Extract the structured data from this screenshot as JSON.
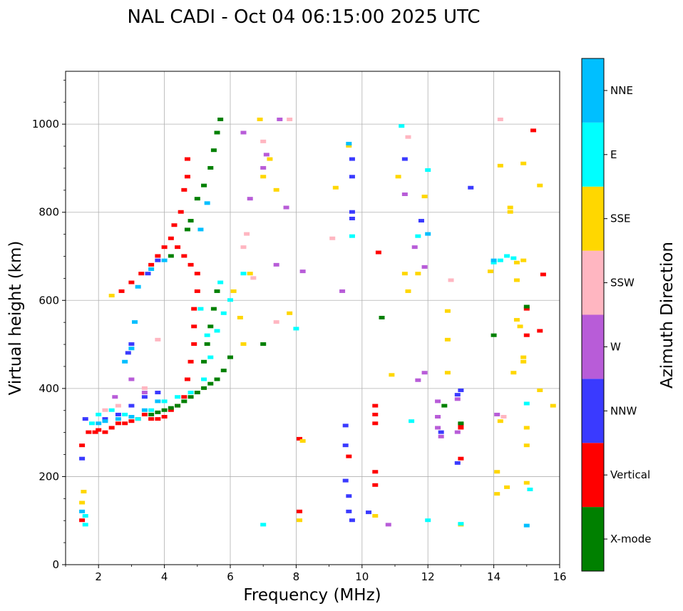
{
  "chart_data": {
    "type": "scatter",
    "title": "NAL CADI - Oct 04 06:15:00 2025 UTC",
    "xlabel": "Frequency (MHz)",
    "ylabel": "Virtual height (km)",
    "xlim": [
      1,
      16
    ],
    "ylim": [
      0,
      1120
    ],
    "xticks": [
      2,
      4,
      6,
      8,
      10,
      12,
      14,
      16
    ],
    "yticks": [
      0,
      200,
      400,
      600,
      800,
      1000
    ],
    "grid": true,
    "colorbar": {
      "label": "Azimuth Direction",
      "categories": [
        {
          "name": "X-mode",
          "color": "#008000"
        },
        {
          "name": "Vertical",
          "color": "#ff0000"
        },
        {
          "name": "NNW",
          "color": "#3a3aff"
        },
        {
          "name": "W",
          "color": "#b85cd8"
        },
        {
          "name": "SSW",
          "color": "#ffb6c1"
        },
        {
          "name": "SSE",
          "color": "#ffd700"
        },
        {
          "name": "E",
          "color": "#00ffff"
        },
        {
          "name": "NNE",
          "color": "#00bfff"
        }
      ]
    },
    "series": [
      {
        "name": "Vertical",
        "points": [
          [
            1.5,
            100
          ],
          [
            1.5,
            270
          ],
          [
            1.7,
            300
          ],
          [
            1.9,
            300
          ],
          [
            2.0,
            305
          ],
          [
            2.2,
            300
          ],
          [
            2.4,
            310
          ],
          [
            2.6,
            320
          ],
          [
            2.8,
            320
          ],
          [
            3.0,
            325
          ],
          [
            3.2,
            330
          ],
          [
            3.4,
            340
          ],
          [
            3.6,
            330
          ],
          [
            3.8,
            330
          ],
          [
            4.0,
            335
          ],
          [
            4.2,
            350
          ],
          [
            4.4,
            360
          ],
          [
            4.6,
            380
          ],
          [
            4.7,
            420
          ],
          [
            4.8,
            460
          ],
          [
            4.9,
            500
          ],
          [
            4.9,
            540
          ],
          [
            4.9,
            580
          ],
          [
            5.0,
            620
          ],
          [
            5.0,
            660
          ],
          [
            4.8,
            680
          ],
          [
            4.6,
            700
          ],
          [
            4.4,
            720
          ],
          [
            2.7,
            620
          ],
          [
            3.0,
            640
          ],
          [
            3.3,
            660
          ],
          [
            3.6,
            680
          ],
          [
            3.8,
            700
          ],
          [
            4.0,
            720
          ],
          [
            4.2,
            740
          ],
          [
            4.3,
            770
          ],
          [
            4.5,
            800
          ],
          [
            4.6,
            850
          ],
          [
            4.7,
            880
          ],
          [
            4.7,
            920
          ],
          [
            8.1,
            120
          ],
          [
            8.1,
            285
          ],
          [
            9.6,
            245
          ],
          [
            10.4,
            180
          ],
          [
            10.4,
            210
          ],
          [
            10.4,
            320
          ],
          [
            10.4,
            340
          ],
          [
            10.4,
            360
          ],
          [
            10.5,
            708
          ],
          [
            13.0,
            240
          ],
          [
            13.0,
            310
          ],
          [
            13.0,
            318
          ],
          [
            15.0,
            520
          ],
          [
            15.0,
            580
          ],
          [
            15.2,
            985
          ],
          [
            15.4,
            530
          ],
          [
            15.5,
            658
          ]
        ]
      },
      {
        "name": "X-mode",
        "points": [
          [
            3.6,
            340
          ],
          [
            3.8,
            345
          ],
          [
            4.0,
            350
          ],
          [
            4.2,
            355
          ],
          [
            4.4,
            360
          ],
          [
            4.6,
            370
          ],
          [
            4.8,
            380
          ],
          [
            5.0,
            390
          ],
          [
            5.2,
            400
          ],
          [
            5.4,
            410
          ],
          [
            5.6,
            420
          ],
          [
            5.8,
            440
          ],
          [
            6.0,
            470
          ],
          [
            5.2,
            460
          ],
          [
            5.3,
            500
          ],
          [
            5.4,
            540
          ],
          [
            5.5,
            580
          ],
          [
            5.6,
            620
          ],
          [
            4.2,
            700
          ],
          [
            4.7,
            760
          ],
          [
            4.8,
            780
          ],
          [
            5.0,
            830
          ],
          [
            5.2,
            860
          ],
          [
            5.4,
            900
          ],
          [
            5.5,
            940
          ],
          [
            5.6,
            980
          ],
          [
            5.7,
            1010
          ],
          [
            7.0,
            500
          ],
          [
            10.6,
            560
          ],
          [
            12.5,
            360
          ],
          [
            13.0,
            320
          ],
          [
            14.0,
            520
          ],
          [
            15.0,
            585
          ]
        ]
      },
      {
        "name": "NNW",
        "points": [
          [
            1.5,
            240
          ],
          [
            1.6,
            330
          ],
          [
            2.2,
            330
          ],
          [
            2.6,
            340
          ],
          [
            3.0,
            360
          ],
          [
            3.4,
            380
          ],
          [
            3.8,
            390
          ],
          [
            2.9,
            480
          ],
          [
            3.0,
            500
          ],
          [
            3.5,
            660
          ],
          [
            3.8,
            690
          ],
          [
            9.5,
            315
          ],
          [
            9.5,
            270
          ],
          [
            9.5,
            190
          ],
          [
            9.6,
            155
          ],
          [
            9.6,
            120
          ],
          [
            9.7,
            785
          ],
          [
            9.7,
            920
          ],
          [
            9.7,
            880
          ],
          [
            9.7,
            800
          ],
          [
            10.2,
            118
          ],
          [
            11.3,
            920
          ],
          [
            11.8,
            780
          ],
          [
            12.4,
            300
          ],
          [
            12.9,
            230
          ],
          [
            12.9,
            385
          ],
          [
            13.3,
            855
          ],
          [
            13.0,
            395
          ],
          [
            9.7,
            100
          ]
        ]
      },
      {
        "name": "W",
        "points": [
          [
            2.5,
            380
          ],
          [
            3.0,
            420
          ],
          [
            3.4,
            390
          ],
          [
            6.4,
            980
          ],
          [
            6.6,
            830
          ],
          [
            7.0,
            900
          ],
          [
            7.1,
            930
          ],
          [
            7.4,
            680
          ],
          [
            7.7,
            810
          ],
          [
            8.2,
            665
          ],
          [
            9.4,
            620
          ],
          [
            10.8,
            90
          ],
          [
            11.3,
            840
          ],
          [
            11.6,
            720
          ],
          [
            11.7,
            418
          ],
          [
            11.9,
            675
          ],
          [
            11.9,
            435
          ],
          [
            12.3,
            370
          ],
          [
            12.3,
            335
          ],
          [
            12.3,
            310
          ],
          [
            12.4,
            290
          ],
          [
            12.9,
            375
          ],
          [
            12.9,
            300
          ],
          [
            14.1,
            340
          ],
          [
            7.5,
            1010
          ]
        ]
      },
      {
        "name": "SSW",
        "points": [
          [
            2.2,
            350
          ],
          [
            2.6,
            360
          ],
          [
            3.4,
            400
          ],
          [
            3.8,
            510
          ],
          [
            6.4,
            720
          ],
          [
            6.5,
            750
          ],
          [
            6.7,
            650
          ],
          [
            7.0,
            960
          ],
          [
            7.4,
            550
          ],
          [
            7.8,
            1010
          ],
          [
            9.1,
            740
          ],
          [
            11.4,
            970
          ],
          [
            12.7,
            645
          ],
          [
            14.3,
            335
          ],
          [
            14.2,
            1010
          ]
        ]
      },
      {
        "name": "SSE",
        "points": [
          [
            1.5,
            140
          ],
          [
            1.55,
            165
          ],
          [
            2.4,
            610
          ],
          [
            6.1,
            620
          ],
          [
            6.3,
            560
          ],
          [
            6.4,
            500
          ],
          [
            6.6,
            660
          ],
          [
            6.9,
            1010
          ],
          [
            7.0,
            880
          ],
          [
            7.2,
            920
          ],
          [
            7.4,
            850
          ],
          [
            7.8,
            570
          ],
          [
            8.1,
            100
          ],
          [
            8.2,
            280
          ],
          [
            9.2,
            855
          ],
          [
            9.6,
            950
          ],
          [
            10.4,
            110
          ],
          [
            10.9,
            430
          ],
          [
            11.1,
            880
          ],
          [
            11.3,
            660
          ],
          [
            11.4,
            620
          ],
          [
            11.7,
            660
          ],
          [
            11.9,
            835
          ],
          [
            12.6,
            575
          ],
          [
            12.6,
            510
          ],
          [
            12.6,
            435
          ],
          [
            13.0,
            90
          ],
          [
            13.9,
            665
          ],
          [
            14.2,
            905
          ],
          [
            14.2,
            325
          ],
          [
            14.4,
            175
          ],
          [
            14.5,
            810
          ],
          [
            14.6,
            435
          ],
          [
            14.7,
            685
          ],
          [
            14.7,
            645
          ],
          [
            14.7,
            555
          ],
          [
            14.8,
            540
          ],
          [
            14.9,
            470
          ],
          [
            14.9,
            460
          ],
          [
            14.9,
            910
          ],
          [
            14.9,
            690
          ],
          [
            15.0,
            310
          ],
          [
            15.0,
            270
          ],
          [
            15.0,
            185
          ],
          [
            15.4,
            860
          ],
          [
            15.4,
            395
          ],
          [
            15.8,
            360
          ],
          [
            14.5,
            800
          ],
          [
            14.1,
            210
          ],
          [
            14.1,
            160
          ]
        ]
      },
      {
        "name": "E",
        "points": [
          [
            1.6,
            110
          ],
          [
            1.6,
            90
          ],
          [
            1.8,
            320
          ],
          [
            2.0,
            340
          ],
          [
            2.4,
            350
          ],
          [
            2.8,
            340
          ],
          [
            3.2,
            330
          ],
          [
            3.6,
            350
          ],
          [
            4.0,
            370
          ],
          [
            4.4,
            380
          ],
          [
            4.8,
            390
          ],
          [
            5.2,
            420
          ],
          [
            5.4,
            470
          ],
          [
            5.6,
            530
          ],
          [
            5.8,
            570
          ],
          [
            6.0,
            600
          ],
          [
            5.1,
            580
          ],
          [
            5.3,
            520
          ],
          [
            5.7,
            640
          ],
          [
            6.4,
            660
          ],
          [
            7.0,
            90
          ],
          [
            8.0,
            535
          ],
          [
            9.7,
            745
          ],
          [
            11.2,
            995
          ],
          [
            11.5,
            325
          ],
          [
            11.7,
            745
          ],
          [
            12.0,
            100
          ],
          [
            12.0,
            895
          ],
          [
            13.0,
            92
          ],
          [
            14.0,
            685
          ],
          [
            14.2,
            690
          ],
          [
            14.4,
            700
          ],
          [
            14.6,
            695
          ],
          [
            15.0,
            365
          ],
          [
            15.1,
            170
          ]
        ]
      },
      {
        "name": "NNE",
        "points": [
          [
            1.5,
            120
          ],
          [
            2.0,
            320
          ],
          [
            2.2,
            325
          ],
          [
            2.6,
            330
          ],
          [
            3.0,
            335
          ],
          [
            3.4,
            350
          ],
          [
            3.8,
            370
          ],
          [
            2.8,
            460
          ],
          [
            3.0,
            490
          ],
          [
            3.1,
            550
          ],
          [
            3.2,
            630
          ],
          [
            3.6,
            670
          ],
          [
            4.0,
            690
          ],
          [
            5.1,
            760
          ],
          [
            5.3,
            820
          ],
          [
            9.6,
            955
          ],
          [
            12.0,
            750
          ],
          [
            14.0,
            690
          ],
          [
            15.0,
            88
          ]
        ]
      }
    ]
  }
}
